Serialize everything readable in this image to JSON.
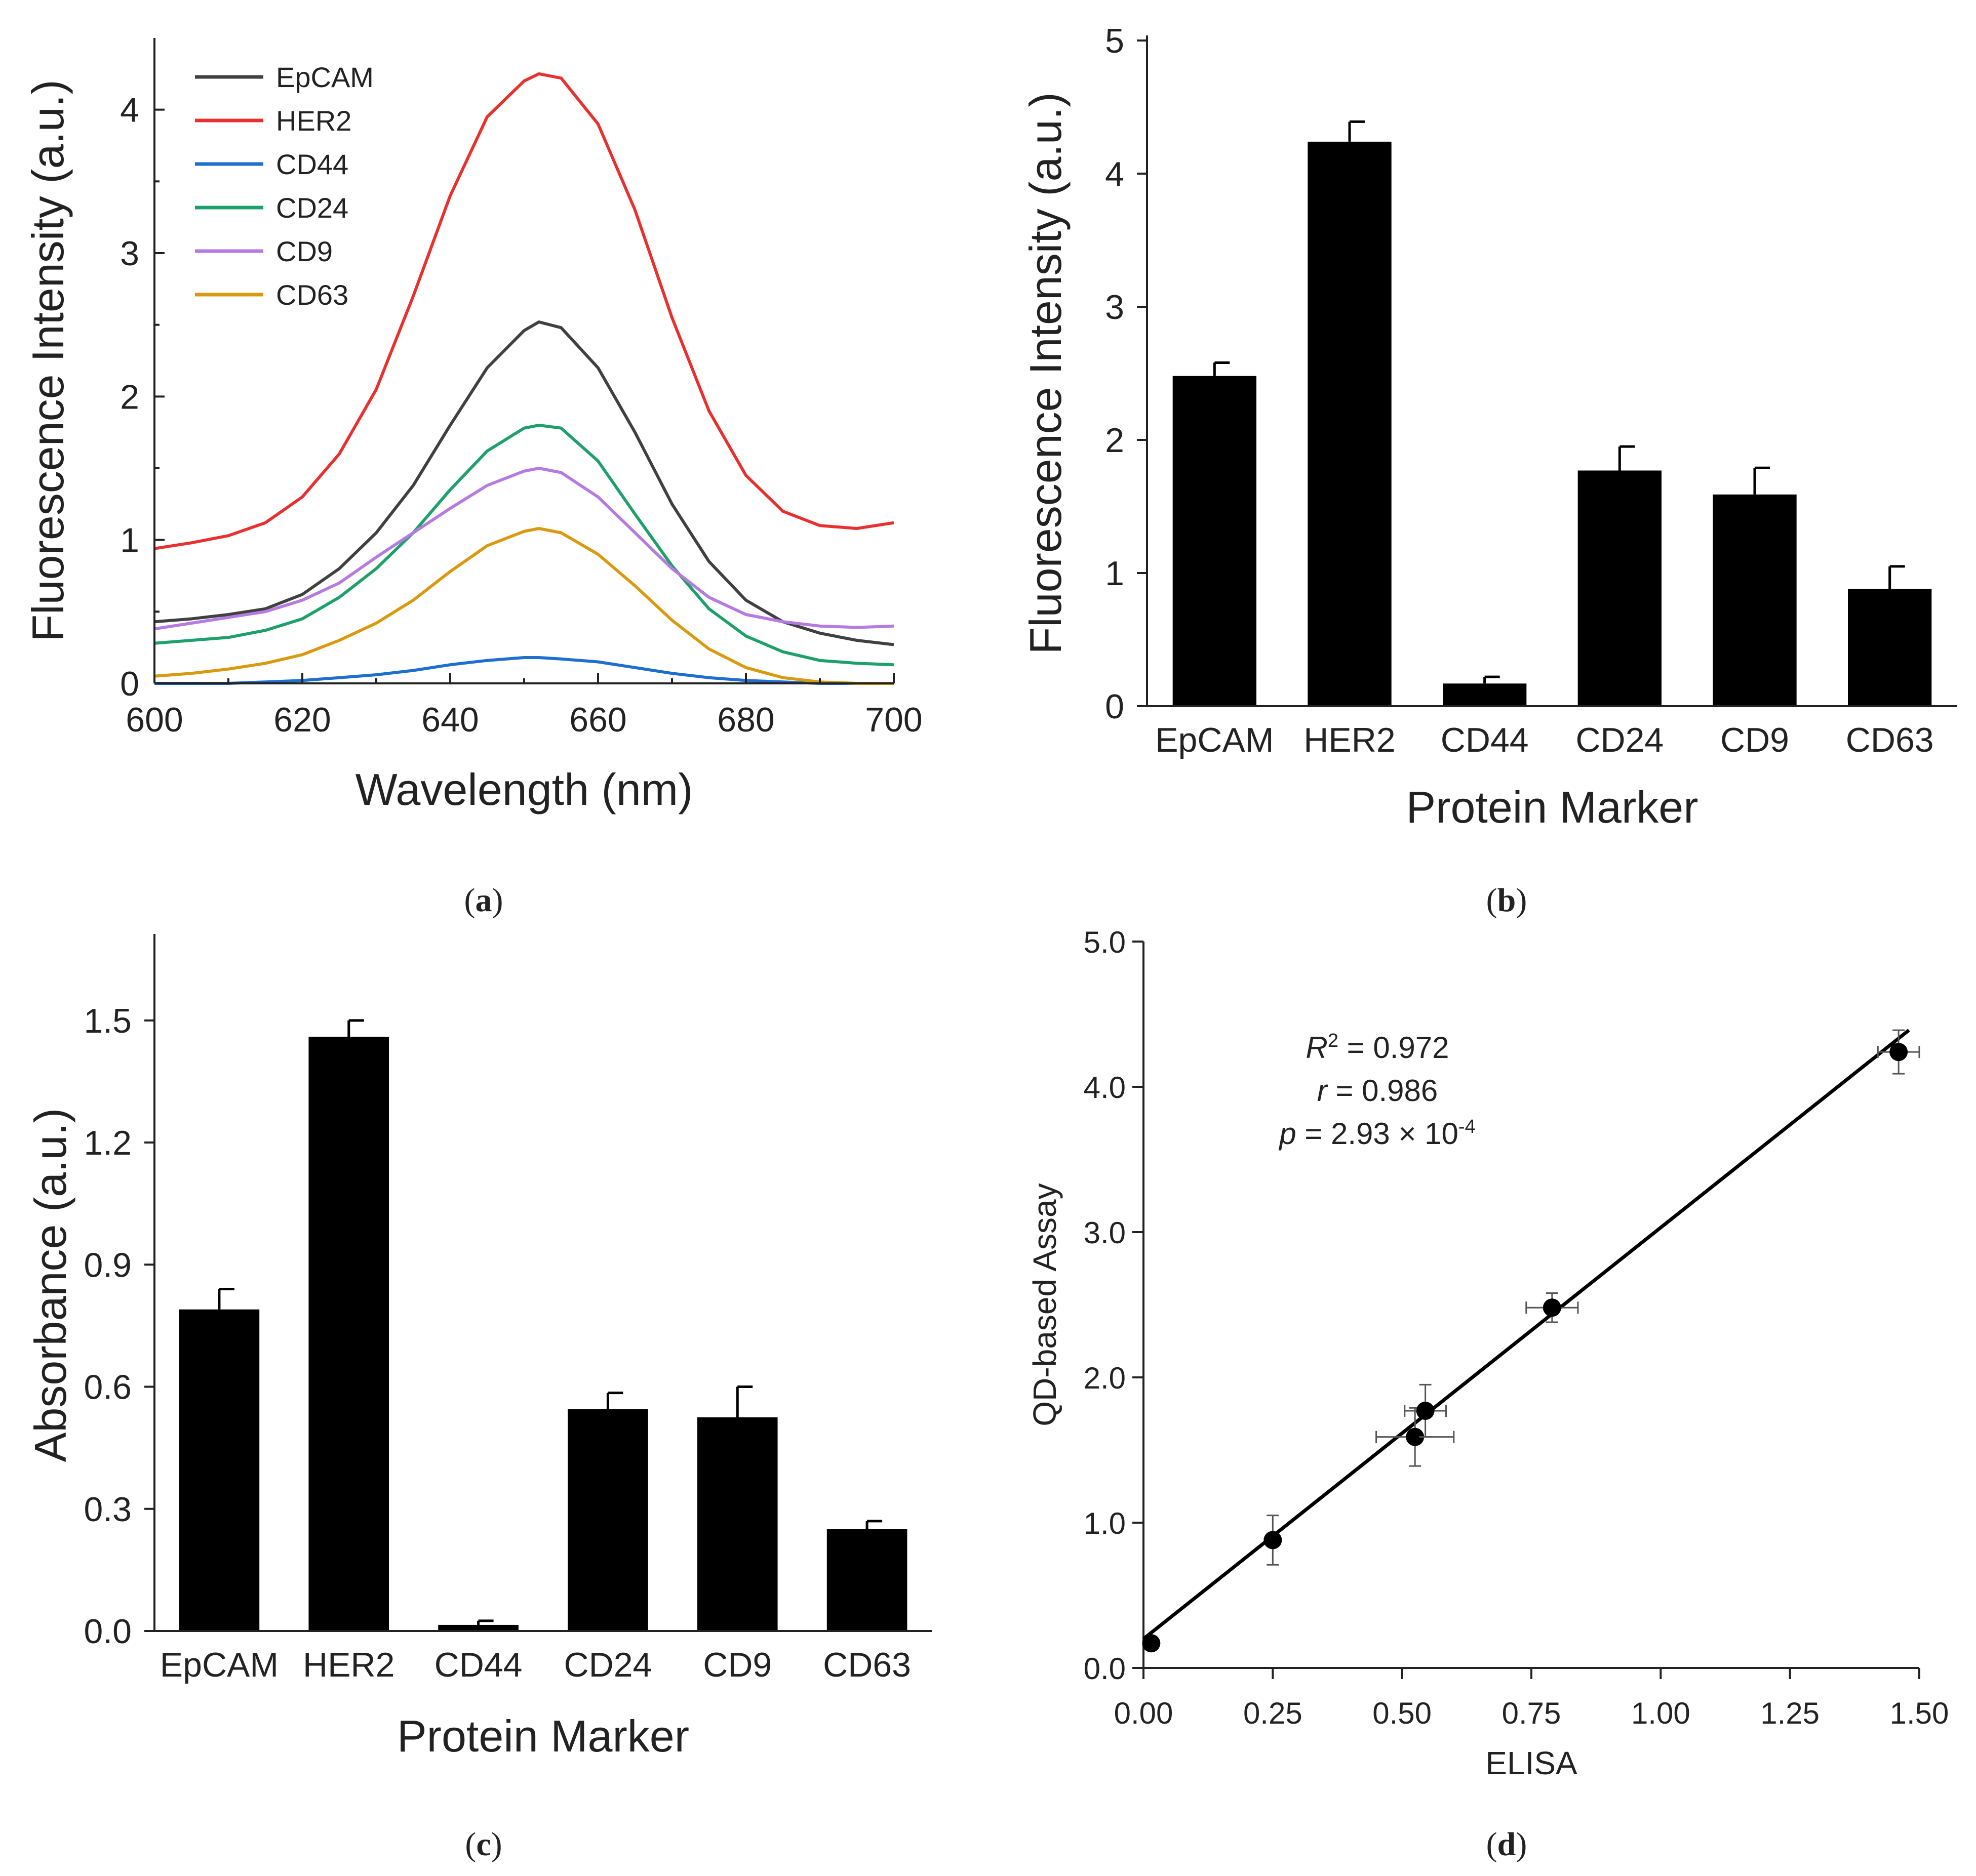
{
  "chart_data": [
    {
      "panel": "a",
      "type": "line",
      "caption": "a",
      "xlabel": "Wavelength (nm)",
      "ylabel": "Fluorescence Intensity (a.u.)",
      "xlim": [
        600,
        700
      ],
      "ylim": [
        0,
        4.5
      ],
      "xticks": [
        600,
        620,
        640,
        660,
        680,
        700
      ],
      "yticks": [
        0,
        1,
        2,
        3,
        4
      ],
      "x": [
        600,
        605,
        610,
        615,
        620,
        625,
        630,
        635,
        640,
        645,
        650,
        652,
        655,
        660,
        665,
        670,
        675,
        680,
        685,
        690,
        695,
        700
      ],
      "legend_position": "top-left",
      "series": [
        {
          "name": "EpCAM",
          "color": "#404040",
          "values": [
            0.43,
            0.45,
            0.48,
            0.52,
            0.62,
            0.8,
            1.05,
            1.38,
            1.8,
            2.2,
            2.46,
            2.52,
            2.48,
            2.2,
            1.75,
            1.25,
            0.85,
            0.58,
            0.43,
            0.35,
            0.3,
            0.27
          ]
        },
        {
          "name": "HER2",
          "color": "#e8312f",
          "values": [
            0.94,
            0.98,
            1.03,
            1.12,
            1.3,
            1.6,
            2.05,
            2.7,
            3.4,
            3.95,
            4.2,
            4.25,
            4.22,
            3.9,
            3.3,
            2.55,
            1.9,
            1.45,
            1.2,
            1.1,
            1.08,
            1.12
          ]
        },
        {
          "name": "CD44",
          "color": "#1f6fd1",
          "values": [
            0.0,
            0.0,
            0.0,
            0.01,
            0.02,
            0.04,
            0.06,
            0.09,
            0.13,
            0.16,
            0.18,
            0.18,
            0.17,
            0.15,
            0.11,
            0.07,
            0.04,
            0.02,
            0.01,
            0.0,
            0.0,
            0.0
          ]
        },
        {
          "name": "CD24",
          "color": "#1ea06a",
          "values": [
            0.28,
            0.3,
            0.32,
            0.37,
            0.45,
            0.6,
            0.8,
            1.05,
            1.35,
            1.62,
            1.78,
            1.8,
            1.78,
            1.55,
            1.18,
            0.82,
            0.52,
            0.33,
            0.22,
            0.16,
            0.14,
            0.13
          ]
        },
        {
          "name": "CD9",
          "color": "#b57be0",
          "values": [
            0.38,
            0.42,
            0.46,
            0.5,
            0.58,
            0.7,
            0.88,
            1.05,
            1.22,
            1.38,
            1.48,
            1.5,
            1.47,
            1.3,
            1.05,
            0.8,
            0.6,
            0.48,
            0.43,
            0.4,
            0.39,
            0.4
          ]
        },
        {
          "name": "CD63",
          "color": "#d99a0f",
          "values": [
            0.05,
            0.07,
            0.1,
            0.14,
            0.2,
            0.3,
            0.42,
            0.58,
            0.78,
            0.96,
            1.06,
            1.08,
            1.05,
            0.9,
            0.68,
            0.44,
            0.24,
            0.11,
            0.04,
            0.01,
            0.0,
            0.0
          ]
        }
      ]
    },
    {
      "panel": "b",
      "type": "bar",
      "caption": "b",
      "xlabel": "Protein Marker",
      "ylabel": "Fluorescence Intensity (a.u.)",
      "ylim": [
        0,
        5
      ],
      "yticks": [
        0,
        1,
        2,
        3,
        4,
        5
      ],
      "categories": [
        "EpCAM",
        "HER2",
        "CD44",
        "CD24",
        "CD9",
        "CD63"
      ],
      "values": [
        2.48,
        4.24,
        0.17,
        1.77,
        1.59,
        0.88
      ],
      "errors": [
        0.1,
        0.15,
        0.05,
        0.18,
        0.2,
        0.17
      ]
    },
    {
      "panel": "c",
      "type": "bar",
      "caption": "c",
      "xlabel": "Protein Marker",
      "ylabel": "Absorbance (a.u.)",
      "ylim": [
        0,
        1.7
      ],
      "yticks": [
        "0.0",
        "0.3",
        "0.6",
        "0.9",
        "1.2",
        "1.5"
      ],
      "categories": [
        "EpCAM",
        "HER2",
        "CD44",
        "CD24",
        "CD9",
        "CD63"
      ],
      "values": [
        0.79,
        1.46,
        0.015,
        0.545,
        0.525,
        0.25
      ],
      "errors": [
        0.05,
        0.04,
        0.01,
        0.04,
        0.075,
        0.02
      ]
    },
    {
      "panel": "d",
      "type": "scatter",
      "caption": "d",
      "xlabel": "ELISA",
      "ylabel": "QD-based Assay",
      "xlim": [
        0,
        1.5
      ],
      "ylim": [
        0,
        5
      ],
      "xticks": [
        "0.00",
        "0.25",
        "0.50",
        "0.75",
        "1.00",
        "1.25",
        "1.50"
      ],
      "yticks": [
        "0.0",
        "1.0",
        "2.0",
        "3.0",
        "4.0",
        "5.0"
      ],
      "points": [
        {
          "x": 0.015,
          "y": 0.17,
          "xerr": 0.0,
          "yerr": 0.0
        },
        {
          "x": 0.25,
          "y": 0.88,
          "xerr": 0.0,
          "yerr": 0.17
        },
        {
          "x": 0.525,
          "y": 1.59,
          "xerr": 0.075,
          "yerr": 0.2
        },
        {
          "x": 0.545,
          "y": 1.77,
          "xerr": 0.04,
          "yerr": 0.18
        },
        {
          "x": 0.79,
          "y": 2.48,
          "xerr": 0.05,
          "yerr": 0.1
        },
        {
          "x": 1.46,
          "y": 4.24,
          "xerr": 0.04,
          "yerr": 0.15
        }
      ],
      "fit": {
        "x": [
          0.0,
          1.48
        ],
        "y": [
          0.2,
          4.39
        ]
      },
      "annotations": {
        "r2_symbol": "R",
        "r2_sup": "2",
        "r2_value": " = 0.972",
        "r_symbol": "r",
        "r_value": " = 0.986",
        "p_symbol": "p",
        "p_value": " = 2.93 × 10",
        "p_exp": "-4"
      }
    }
  ]
}
